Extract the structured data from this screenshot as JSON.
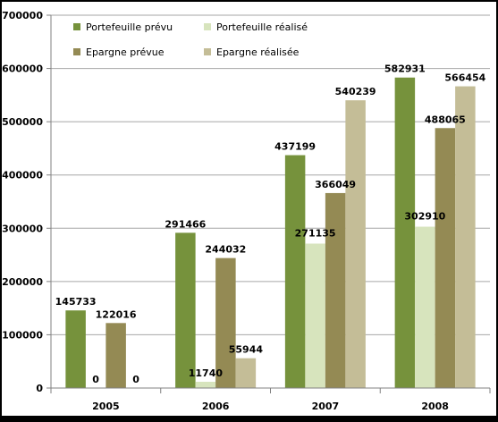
{
  "chart_data": {
    "type": "bar",
    "title": "",
    "xlabel": "",
    "ylabel": "",
    "categories": [
      "2005",
      "2006",
      "2007",
      "2008"
    ],
    "ylim": [
      0,
      700000
    ],
    "yticks": [
      "0",
      "100000",
      "200000",
      "300000",
      "400000",
      "500000",
      "600000",
      "700000"
    ],
    "grid": true,
    "legend_position": "top-left, inside plot",
    "series": [
      {
        "name": "Portefeuille prévu",
        "color": "#76923C",
        "values": [
          145733,
          291466,
          437199,
          582931
        ],
        "labels": [
          "145733",
          "291466",
          "437199",
          "582931"
        ]
      },
      {
        "name": "Portefeuille réalisé",
        "color": "#D7E4BD",
        "values": [
          0,
          11740,
          271135,
          302910
        ],
        "labels": [
          "0",
          "11740",
          "271135",
          "302910"
        ]
      },
      {
        "name": "Epargne prévue",
        "color": "#948A54",
        "values": [
          122016,
          244032,
          366049,
          488065
        ],
        "labels": [
          "122016",
          "244032",
          "366049",
          "488065"
        ]
      },
      {
        "name": "Epargne réalisée",
        "color": "#C4BD97",
        "values": [
          0,
          55944,
          540239,
          566454
        ],
        "labels": [
          "0",
          "55944",
          "540239",
          "566454"
        ]
      }
    ],
    "legend_order": [
      0,
      1,
      2,
      3
    ]
  }
}
